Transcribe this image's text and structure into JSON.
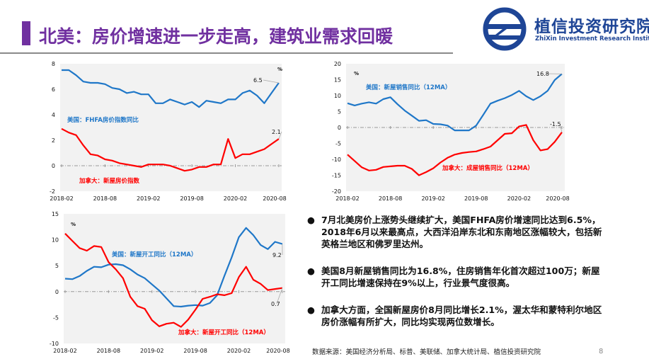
{
  "title": "北美：房价增速进一步走高，建筑业需求回暖",
  "logo": {
    "name_cn": "植信投资研究院",
    "name_en": "ZhiXin Investment Research Institute"
  },
  "colors": {
    "title": "#7030a0",
    "us": "#1f77c8",
    "canada": "#ff0000",
    "logo": "#1e4596",
    "plot_bg": "#f2f2f2"
  },
  "chart_data": [
    {
      "type": "line",
      "unit": "%",
      "ylim": [
        -2,
        8
      ],
      "yticks": [
        "-2",
        "0",
        "2",
        "4",
        "6",
        "8"
      ],
      "xtick_labels": [
        "2018-02",
        "2018-08",
        "2019-02",
        "2019-08",
        "2020-02",
        "2020-08"
      ],
      "series": [
        {
          "name": "美国：FHFA房价指数同比",
          "color": "#1f77c8",
          "end_label": "6.5",
          "values": [
            7.5,
            7.5,
            7.1,
            6.6,
            6.5,
            6.5,
            6.4,
            6.1,
            6.0,
            5.7,
            5.8,
            5.6,
            5.6,
            4.9,
            4.9,
            5.2,
            5.0,
            4.8,
            5.0,
            4.6,
            5.1,
            5.0,
            4.9,
            5.2,
            5.2,
            5.7,
            5.9,
            5.5,
            4.9,
            5.7,
            6.5
          ]
        },
        {
          "name": "加拿大：新屋房价指数",
          "color": "#ff0000",
          "end_label": "2.1",
          "values": [
            2.9,
            2.6,
            2.4,
            1.6,
            0.9,
            0.8,
            0.5,
            0.4,
            0.2,
            0.1,
            0.0,
            -0.1,
            0.1,
            0.1,
            0.1,
            0.0,
            -0.2,
            -0.4,
            -0.3,
            -0.1,
            -0.1,
            0.1,
            0.1,
            2.1,
            0.6,
            0.9,
            0.9,
            1.1,
            1.3,
            1.7,
            2.1
          ]
        }
      ]
    },
    {
      "type": "line",
      "unit": "%",
      "ylim": [
        -20,
        20
      ],
      "yticks": [
        "-20",
        "-15",
        "-10",
        "-5",
        "0",
        "5",
        "10",
        "15",
        "20"
      ],
      "xtick_labels": [
        "2018-02",
        "2018-08",
        "2019-02",
        "2019-08",
        "2020-02",
        "2020-08"
      ],
      "series": [
        {
          "name": "美国：新屋销售同比（12MA）",
          "color": "#1f77c8",
          "end_label": "16.8",
          "values": [
            7.6,
            6.9,
            7.5,
            7.9,
            7.5,
            8.9,
            9.5,
            7.3,
            5.3,
            3.7,
            2.1,
            2.3,
            1.1,
            1.0,
            0.6,
            -0.9,
            -0.9,
            -0.9,
            0.6,
            4.0,
            7.5,
            8.4,
            9.2,
            10.2,
            11.5,
            9.8,
            8.6,
            9.8,
            11.5,
            14.9,
            16.8
          ]
        },
        {
          "name": "加拿大：成屋销售同比（12MA）",
          "color": "#ff0000",
          "end_label": "-1.5",
          "values": [
            -8.5,
            -10.5,
            -12.5,
            -13.5,
            -13.3,
            -12.4,
            -12.2,
            -12.0,
            -12.0,
            -13.0,
            -15.0,
            -14.0,
            -12.8,
            -11.0,
            -9.5,
            -8.5,
            -8.0,
            -7.7,
            -7.5,
            -6.8,
            -6.0,
            -4.0,
            -2.0,
            -1.8,
            0.3,
            0.8,
            -4.0,
            -7.2,
            -6.8,
            -4.5,
            -1.5
          ]
        }
      ]
    },
    {
      "type": "line",
      "unit": "%",
      "ylim": [
        -10,
        15
      ],
      "yticks": [
        "-10",
        "-5",
        "0",
        "5",
        "10",
        "15"
      ],
      "xtick_labels": [
        "2018-02",
        "2018-08",
        "2019-02",
        "2019-08",
        "2020-02",
        "2020-08"
      ],
      "series": [
        {
          "name": "美国：新屋开工同比（12MA）",
          "color": "#1f77c8",
          "end_label": "9.2",
          "values": [
            2.5,
            2.4,
            3.0,
            4.0,
            4.8,
            4.7,
            5.2,
            5.3,
            5.1,
            4.3,
            3.3,
            2.6,
            1.4,
            0.2,
            -1.3,
            -2.8,
            -2.9,
            -2.7,
            -2.6,
            -2.7,
            -2.2,
            -0.7,
            3.0,
            6.6,
            10.5,
            12.3,
            10.9,
            9.0,
            8.2,
            9.6,
            9.2
          ]
        },
        {
          "name": "加拿大：新屋开工同比（12MA）",
          "color": "#ff0000",
          "end_label": "0.7",
          "values": [
            11.2,
            9.8,
            8.4,
            7.9,
            8.8,
            8.6,
            5.7,
            4.3,
            2.6,
            -1.0,
            -2.8,
            -3.3,
            -5.5,
            -6.7,
            -6.2,
            -6.0,
            -6.8,
            -5.4,
            -3.5,
            -1.4,
            -1.0,
            -0.5,
            -0.7,
            -0.3,
            2.8,
            4.8,
            2.3,
            1.5,
            0.3,
            0.5,
            0.7
          ]
        }
      ]
    }
  ],
  "bullets": [
    "7月北美房价上涨势头继续扩大，美国FHFA房价增速同比达到6.5%，2018年6月以来最高点，大西洋沿岸东北和东南地区涨幅较大，包括新英格兰地区和佛罗里达州。",
    "美国8月新屋销售同比为16.8%，住房销售年化首次超过100万；新屋开工同比增速保持在9%以上，行业景气度很高。",
    "加拿大方面，全国新屋房价8月同比增长2.1%，渥太华和蒙特利尔地区房价涨幅有所扩大，同比均实现两位数增长。"
  ],
  "bullet_symbol": "●",
  "source": "数据来源：美国经济分析局、标普、美联储、加拿大统计局、植信投资研究院",
  "page_number": "8"
}
